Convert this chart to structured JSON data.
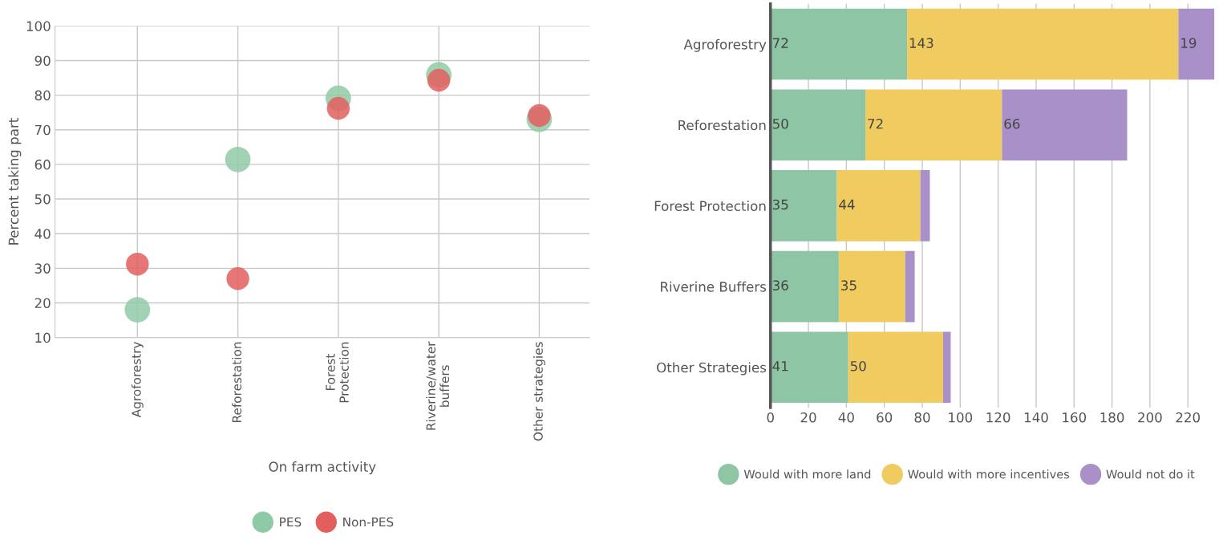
{
  "chart_data": [
    {
      "type": "scatter",
      "categories": [
        "Agroforestry",
        "Reforestation",
        "Forest\nProtection",
        "Riverine/water\nbuffers",
        "Other strategies"
      ],
      "xlabel": "On farm activity",
      "ylabel": "Percent taking part",
      "ylim": [
        10,
        100
      ],
      "yticks": [
        10,
        20,
        30,
        40,
        50,
        60,
        70,
        80,
        90,
        100
      ],
      "grid": true,
      "legend": "bottom",
      "marker": "circle",
      "series": [
        {
          "name": "PES",
          "color": "#8fcaa6",
          "values": [
            18,
            61.4,
            79.1,
            85.9,
            73
          ]
        },
        {
          "name": "Non-PES",
          "color": "#e35f5f",
          "values": [
            31.2,
            27,
            76.2,
            84.3,
            74.1
          ]
        }
      ]
    },
    {
      "type": "bar",
      "orientation": "horizontal",
      "stacked": true,
      "categories": [
        "Agroforestry",
        "Reforestation",
        "Forest Protection",
        "Riverine Buffers",
        "Other Strategies"
      ],
      "xlim": [
        0,
        234
      ],
      "xticks": [
        0,
        20,
        40,
        60,
        80,
        100,
        120,
        140,
        160,
        180,
        200,
        220
      ],
      "grid": "x",
      "legend": "bottom",
      "series": [
        {
          "name": "Would with more land",
          "color": "#8dc5a5",
          "values": [
            72,
            50,
            35,
            36,
            41
          ],
          "value_labels": [
            "72",
            "50",
            "35",
            "36",
            "41"
          ]
        },
        {
          "name": "Would with more incentives",
          "color": "#f0cb60",
          "values": [
            143,
            72,
            44,
            35,
            50
          ],
          "value_labels": [
            "143",
            "72",
            "44",
            "35",
            "50"
          ]
        },
        {
          "name": "Would not do it",
          "color": "#a990c8",
          "values": [
            19,
            66,
            5,
            5,
            4
          ],
          "value_labels": [
            "19",
            "66",
            null,
            null,
            null
          ]
        }
      ]
    }
  ]
}
